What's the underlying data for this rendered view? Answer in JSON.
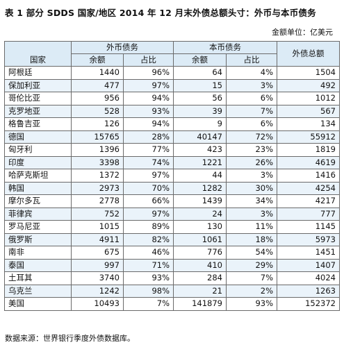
{
  "title": "表 1  部分 SDDS 国家/地区 2014 年 12 月末外债总额头寸：外币与本币债务",
  "unit_note": "金额单位：亿美元",
  "headers": {
    "country": "国家",
    "foreign_currency": "外币债务",
    "domestic_currency": "本币债务",
    "total": "外债总额",
    "amount": "余额",
    "share": "占比"
  },
  "rows": [
    {
      "country": "阿根廷",
      "fc_amount": "1440",
      "fc_share": "96%",
      "dc_amount": "64",
      "dc_share": "4%",
      "total": "1504"
    },
    {
      "country": "保加利亚",
      "fc_amount": "477",
      "fc_share": "97%",
      "dc_amount": "15",
      "dc_share": "3%",
      "total": "492"
    },
    {
      "country": "哥伦比亚",
      "fc_amount": "956",
      "fc_share": "94%",
      "dc_amount": "56",
      "dc_share": "6%",
      "total": "1012"
    },
    {
      "country": "克罗地亚",
      "fc_amount": "528",
      "fc_share": "93%",
      "dc_amount": "39",
      "dc_share": "7%",
      "total": "567"
    },
    {
      "country": "格鲁吉亚",
      "fc_amount": "126",
      "fc_share": "94%",
      "dc_amount": "9",
      "dc_share": "6%",
      "total": "134"
    },
    {
      "country": "德国",
      "fc_amount": "15765",
      "fc_share": "28%",
      "dc_amount": "40147",
      "dc_share": "72%",
      "total": "55912"
    },
    {
      "country": "匈牙利",
      "fc_amount": "1396",
      "fc_share": "77%",
      "dc_amount": "423",
      "dc_share": "23%",
      "total": "1819"
    },
    {
      "country": "印度",
      "fc_amount": "3398",
      "fc_share": "74%",
      "dc_amount": "1221",
      "dc_share": "26%",
      "total": "4619"
    },
    {
      "country": "哈萨克斯坦",
      "fc_amount": "1372",
      "fc_share": "97%",
      "dc_amount": "44",
      "dc_share": "3%",
      "total": "1416"
    },
    {
      "country": "韩国",
      "fc_amount": "2973",
      "fc_share": "70%",
      "dc_amount": "1282",
      "dc_share": "30%",
      "total": "4254"
    },
    {
      "country": "摩尔多瓦",
      "fc_amount": "2778",
      "fc_share": "66%",
      "dc_amount": "1439",
      "dc_share": "34%",
      "total": "4217"
    },
    {
      "country": "菲律宾",
      "fc_amount": "752",
      "fc_share": "97%",
      "dc_amount": "24",
      "dc_share": "3%",
      "total": "777"
    },
    {
      "country": "罗马尼亚",
      "fc_amount": "1015",
      "fc_share": "89%",
      "dc_amount": "130",
      "dc_share": "11%",
      "total": "1145"
    },
    {
      "country": "俄罗斯",
      "fc_amount": "4911",
      "fc_share": "82%",
      "dc_amount": "1061",
      "dc_share": "18%",
      "total": "5973"
    },
    {
      "country": "南非",
      "fc_amount": "675",
      "fc_share": "46%",
      "dc_amount": "776",
      "dc_share": "54%",
      "total": "1451"
    },
    {
      "country": "泰国",
      "fc_amount": "997",
      "fc_share": "71%",
      "dc_amount": "410",
      "dc_share": "29%",
      "total": "1407"
    },
    {
      "country": "土耳其",
      "fc_amount": "3740",
      "fc_share": "93%",
      "dc_amount": "284",
      "dc_share": "7%",
      "total": "4024"
    },
    {
      "country": "乌克兰",
      "fc_amount": "1242",
      "fc_share": "98%",
      "dc_amount": "21",
      "dc_share": "2%",
      "total": "1263"
    },
    {
      "country": "美国",
      "fc_amount": "10493",
      "fc_share": "7%",
      "dc_amount": "141879",
      "dc_share": "93%",
      "total": "152372"
    }
  ],
  "source": "数据来源：世界银行季度外债数据库。"
}
